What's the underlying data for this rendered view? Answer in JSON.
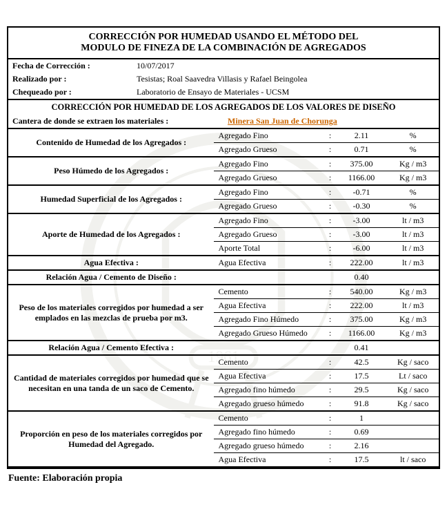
{
  "title_line1": "CORRECCIÓN POR HUMEDAD USANDO EL MÉTODO DEL",
  "title_line2": "MODULO DE FINEZA DE LA COMBINACIÓN DE AGREGADOS",
  "meta": {
    "fecha_label": "Fecha de Corrección :",
    "fecha_value": "10/07/2017",
    "realizado_label": "Realizado  por :",
    "realizado_value": "Tesistas; Roal Saavedra Villasis y Rafael Beingolea",
    "chequeado_label": "Chequeado por :",
    "chequeado_value": "Laboratorio de Ensayo de Materiales - UCSM"
  },
  "section_header": "CORRECCIÓN POR HUMEDAD DE LOS  AGREGADOS  DE LOS VALORES DE DISEÑO",
  "cantera_label": "Cantera de donde se extraen los materiales :",
  "cantera_value": "Minera San Juan de Chorunga",
  "groups": [
    {
      "desc": "Contenido de Humedad de los Agregados  :",
      "rows": [
        {
          "item": "Agregado Fino",
          "colon": ":",
          "num": "2.11",
          "unit": "%"
        },
        {
          "item": "Agregado Grueso",
          "colon": ":",
          "num": "0.71",
          "unit": "%"
        }
      ]
    },
    {
      "desc": "Peso Húmedo de los Agregados  :",
      "rows": [
        {
          "item": "Agregado Fino",
          "colon": ":",
          "num": "375.00",
          "unit": "Kg / m3"
        },
        {
          "item": "Agregado Grueso",
          "colon": ":",
          "num": "1166.00",
          "unit": "Kg / m3"
        }
      ]
    },
    {
      "desc": "Humedad Superficial de los Agregados :",
      "rows": [
        {
          "item": "Agregado Fino",
          "colon": ":",
          "num": "-0.71",
          "unit": "%"
        },
        {
          "item": "Agregado Grueso",
          "colon": ":",
          "num": "-0.30",
          "unit": "%"
        }
      ]
    },
    {
      "desc": "Aporte de Humedad de los Agregados  :",
      "rows": [
        {
          "item": "Agregado Fino",
          "colon": ":",
          "num": "-3.00",
          "unit": "lt / m3"
        },
        {
          "item": "Agregado Grueso",
          "colon": ":",
          "num": "-3.00",
          "unit": "lt / m3"
        },
        {
          "item": "Aporte Total",
          "colon": ":",
          "num": "-6.00",
          "unit": "lt / m3"
        }
      ]
    },
    {
      "desc": "Agua Efectiva                                :",
      "rows": [
        {
          "item": "Agua Efectiva",
          "colon": ":",
          "num": "222.00",
          "unit": "lt / m3"
        }
      ]
    },
    {
      "desc": "Relación Agua / Cemento de Diseño    :",
      "rows": [
        {
          "item": "",
          "colon": "",
          "num": "0.40",
          "unit": ""
        }
      ]
    },
    {
      "desc": "Peso de los materiales  corregidos por humedad a ser emplados en las mezclas de prueba por m3.",
      "rows": [
        {
          "item": "Cemento",
          "colon": ":",
          "num": "540.00",
          "unit": "Kg / m3"
        },
        {
          "item": "Agua Efectiva",
          "colon": ":",
          "num": "222.00",
          "unit": "lt / m3"
        },
        {
          "item": "Agregado Fino Húmedo",
          "colon": ":",
          "num": "375.00",
          "unit": "Kg / m3"
        },
        {
          "item": "Agregado Grueso Húmedo",
          "colon": ":",
          "num": "1166.00",
          "unit": "Kg / m3"
        }
      ]
    },
    {
      "desc": "Relación Agua / Cemento Efectiva     :",
      "rows": [
        {
          "item": "",
          "colon": "",
          "num": "0.41",
          "unit": ""
        }
      ]
    },
    {
      "desc": "Cantidad de materiales corregidos por humedad que se necesitan en una tanda de un saco de Cemento.",
      "rows": [
        {
          "item": "Cemento",
          "colon": ":",
          "num": "42.5",
          "unit": "Kg / saco"
        },
        {
          "item": "Agua Efectiva",
          "colon": ":",
          "num": "17.5",
          "unit": "Lt / saco"
        },
        {
          "item": "Agregado fino húmedo",
          "colon": ":",
          "num": "29.5",
          "unit": "Kg / saco"
        },
        {
          "item": "Agregado grueso húmedo",
          "colon": ":",
          "num": "91.8",
          "unit": "Kg / saco"
        }
      ]
    },
    {
      "desc": "Proporción en peso de los materiales corregidos por Humedad  del Agregado.",
      "rows": [
        {
          "item": "Cemento",
          "colon": ":",
          "num": "1",
          "unit": ""
        },
        {
          "item": "Agregado fino húmedo",
          "colon": ":",
          "num": "0.69",
          "unit": ""
        },
        {
          "item": "Agregado grueso húmedo",
          "colon": ":",
          "num": "2.16",
          "unit": ""
        },
        {
          "item": "Agua Efectiva",
          "colon": ":",
          "num": "17.5",
          "unit": "lt / saco"
        }
      ]
    }
  ],
  "footer": "Fuente: Elaboración propia"
}
